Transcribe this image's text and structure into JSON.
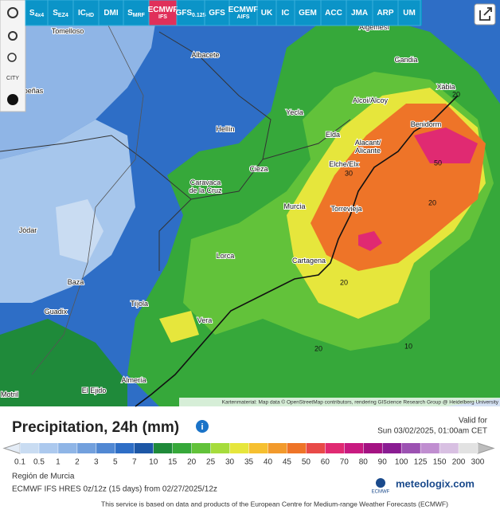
{
  "toolbar": {
    "buttons": [
      {
        "main": "S",
        "sub": "4x4"
      },
      {
        "main": "S",
        "sub": "EZ4"
      },
      {
        "main": "IC",
        "sub": "HD"
      },
      {
        "main": "DMI",
        "sub": ""
      },
      {
        "main": "S",
        "sub": "MRF"
      },
      {
        "main": "ECMWF",
        "sub": "IFS"
      },
      {
        "main": "GFS",
        "sub": "0.125"
      },
      {
        "main": "GFS",
        "sub": ""
      },
      {
        "main": "ECMWF",
        "sub": "AIFS"
      },
      {
        "main": "UK",
        "sub": ""
      },
      {
        "main": "IC",
        "sub": ""
      },
      {
        "main": "GEM",
        "sub": ""
      },
      {
        "main": "ACC",
        "sub": ""
      },
      {
        "main": "JMA",
        "sub": ""
      },
      {
        "main": "ARP",
        "sub": ""
      },
      {
        "main": "UM",
        "sub": ""
      }
    ],
    "active": 5,
    "city_button": "CITY"
  },
  "map": {
    "places": [
      {
        "lines": [
          "Tomelloso"
        ]
      },
      {
        "lines": [
          "Albacete"
        ]
      },
      {
        "lines": [
          "Algemesí"
        ]
      },
      {
        "lines": [
          "Gandia"
        ]
      },
      {
        "lines": [
          "Xàbia"
        ]
      },
      {
        "lines": [
          "Alcoi/Alcoy"
        ]
      },
      {
        "lines": [
          "Yecla"
        ]
      },
      {
        "lines": [
          "Hellín"
        ]
      },
      {
        "lines": [
          "Benidorm"
        ]
      },
      {
        "lines": [
          "Elda"
        ]
      },
      {
        "lines": [
          "Alacant/",
          "Alicante"
        ]
      },
      {
        "lines": [
          "Cieza"
        ]
      },
      {
        "lines": [
          "Elche/Elx"
        ]
      },
      {
        "lines": [
          "Caravaca",
          "de la Cruz"
        ]
      },
      {
        "lines": [
          "Murcia"
        ]
      },
      {
        "lines": [
          "Torrevieja"
        ]
      },
      {
        "lines": [
          "Jódar"
        ]
      },
      {
        "lines": [
          "Lorca"
        ]
      },
      {
        "lines": [
          "Cartagena"
        ]
      },
      {
        "lines": [
          "Baza"
        ]
      },
      {
        "lines": [
          "Tíjola"
        ]
      },
      {
        "lines": [
          "Guadix"
        ]
      },
      {
        "lines": [
          "Vera"
        ]
      },
      {
        "lines": [
          "Almería"
        ]
      },
      {
        "lines": [
          "El Ejido"
        ]
      },
      {
        "lines": [
          "Motril"
        ]
      },
      {
        "lines": [
          "peñas"
        ]
      }
    ],
    "contour_labels": [
      50,
      30,
      20,
      20,
      20,
      10,
      20
    ],
    "attribution": "Kartenmaterial: Map data © OpenStreetMap contributors, rendering GIScience Research Group @ Heidelberg University"
  },
  "legend": {
    "title": "Precipitation, 24h (mm)",
    "info": "i",
    "valid_label": "Valid for",
    "valid_time": "Sun 03/02/2025, 01:00am CET",
    "scale": [
      0.1,
      0.5,
      1,
      2,
      3,
      5,
      7,
      10,
      15,
      20,
      25,
      30,
      35,
      40,
      45,
      50,
      60,
      70,
      80,
      90,
      100,
      125,
      150,
      200,
      300
    ],
    "colors": [
      "#c9dcf2",
      "#acc9ee",
      "#8fb5e6",
      "#72a0dd",
      "#5188d3",
      "#2e6ec6",
      "#1d57a6",
      "#1f8a3a",
      "#36a83a",
      "#62c23a",
      "#a6dc3c",
      "#e6e63c",
      "#f6c030",
      "#f29a2c",
      "#ee7428",
      "#e84a48",
      "#e02a72",
      "#c81a80",
      "#a41282",
      "#8a1c92",
      "#9c52b2",
      "#c08ed0",
      "#d8c0e2",
      "#e2e2e2"
    ],
    "under_color": "#e4ecf6",
    "over_color": "#bdbdbd",
    "region": "Región de Murcia",
    "model": "ECMWF IFS HRES 0z/12z (15 days) from 02/27/2025/12z",
    "ecmwf_logo": "ECMWF",
    "brand": "meteologix.com",
    "footer": "This service is based on data and products of the European Centre for Medium-range Weather Forecasts (ECMWF)"
  }
}
